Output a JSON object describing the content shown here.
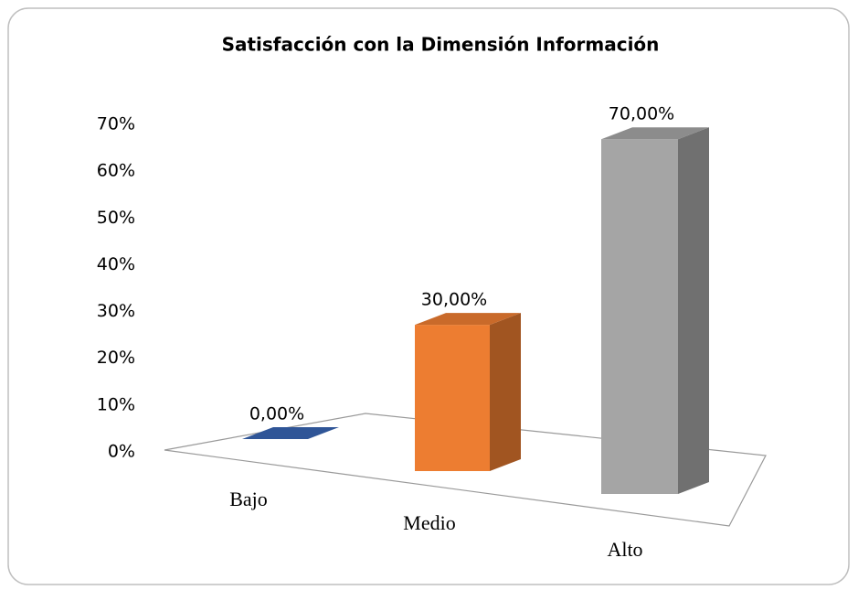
{
  "chart_data": {
    "type": "bar3d",
    "title": "Satisfacción con la Dimensión Información",
    "categories": [
      "Bajo",
      "Medio",
      "Alto"
    ],
    "values": [
      0,
      30,
      70
    ],
    "value_labels": [
      "0,00%",
      "30,00%",
      "70,00%"
    ],
    "colors": [
      "#2f5597",
      "#ed7d31",
      "#a5a5a5"
    ],
    "ylim": [
      0,
      70
    ],
    "yticks": [
      {
        "value": 0,
        "label": "0%"
      },
      {
        "value": 10,
        "label": "10%"
      },
      {
        "value": 20,
        "label": "20%"
      },
      {
        "value": 30,
        "label": "30%"
      },
      {
        "value": 40,
        "label": "40%"
      },
      {
        "value": 50,
        "label": "50%"
      },
      {
        "value": 60,
        "label": "60%"
      },
      {
        "value": 70,
        "label": "70%"
      }
    ]
  }
}
